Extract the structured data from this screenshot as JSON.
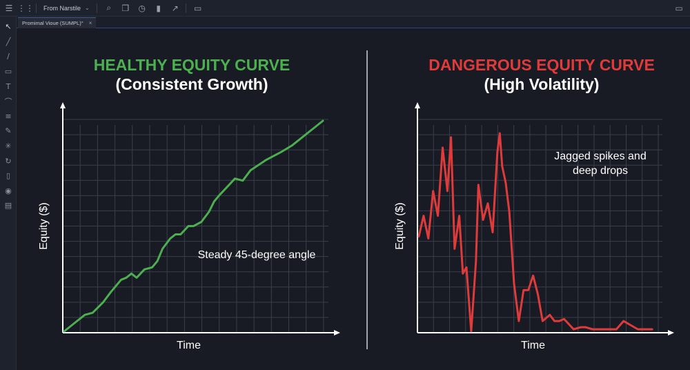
{
  "toolbar": {
    "symbol": "From Narstile",
    "icons": [
      "menu-icon",
      "grid-icon",
      "chevron-down-icon",
      "search-icon",
      "copy-icon",
      "clock-icon",
      "bar-chart-icon",
      "line-chart-icon",
      "settings-icon",
      "layout-icon"
    ]
  },
  "tab": {
    "label": "Promimal Vioue (SUMPL)°",
    "close": "×"
  },
  "sidebar": {
    "icons": [
      "cursor-icon",
      "line-tool-icon",
      "pen-tool-icon",
      "rectangle-tool-icon",
      "text-tool-icon",
      "curve-tool-icon",
      "fib-tool-icon",
      "brush-tool-icon",
      "magic-tool-icon",
      "rotate-icon",
      "measure-icon",
      "eye-icon",
      "layers-icon"
    ]
  },
  "colors": {
    "healthy": "#4caf50",
    "dangerous": "#e03b3b",
    "grid": "#3a3f4b",
    "axis": "#ffffff"
  },
  "chart_data": [
    {
      "type": "line",
      "title": "HEALTHY EQUITY CURVE",
      "subtitle": "(Consistent Growth)",
      "xlabel": "Time",
      "ylabel": "Equity ($)",
      "annotation": "Steady 45-degree angle",
      "grid": true,
      "xlim": [
        0,
        100
      ],
      "ylim": [
        0,
        100
      ],
      "series": [
        {
          "x": [
            0,
            4,
            8,
            11,
            15,
            18,
            22,
            24,
            26,
            28,
            31,
            34,
            36,
            38,
            41,
            43,
            45,
            48,
            50,
            53,
            56,
            58,
            60,
            63,
            66,
            69,
            72,
            78,
            81,
            84,
            88,
            92,
            96,
            100
          ],
          "y": [
            0,
            4,
            8,
            9,
            14,
            19,
            25,
            26,
            28,
            26,
            30,
            31,
            34,
            40,
            45,
            47,
            47,
            51,
            51,
            53,
            58,
            63,
            66,
            70,
            74,
            73,
            78,
            83,
            85,
            87,
            90,
            94,
            98,
            102
          ]
        }
      ]
    },
    {
      "type": "line",
      "title": "DANGEROUS EQUITY CURVE",
      "subtitle": "(High Volatility)",
      "xlabel": "Time",
      "ylabel": "Equity ($)",
      "annotation": "Jagged spikes and\ndeep drops",
      "grid": true,
      "xlim": [
        0,
        100
      ],
      "ylim": [
        0,
        100
      ],
      "series": [
        {
          "x": [
            0,
            2,
            4,
            6,
            8,
            10,
            12,
            13.5,
            15,
            17,
            18.5,
            20,
            22,
            24,
            25,
            27,
            29,
            31,
            33,
            34,
            35,
            36.5,
            38,
            40,
            42,
            44,
            46,
            48,
            50,
            52,
            55,
            57,
            59,
            61,
            65,
            68,
            70,
            73,
            77,
            80,
            83,
            86,
            89,
            92,
            95,
            98
          ],
          "y": [
            46,
            56,
            45,
            68,
            56,
            89,
            68,
            94,
            40,
            56,
            28,
            31,
            0,
            34,
            71,
            54,
            62,
            48,
            87,
            96,
            80,
            72,
            58,
            23,
            5,
            20,
            20,
            27,
            18,
            5,
            8,
            5,
            5,
            6,
            1,
            2,
            2,
            1,
            1,
            1,
            1,
            5,
            3,
            1,
            1,
            1
          ]
        }
      ]
    }
  ]
}
